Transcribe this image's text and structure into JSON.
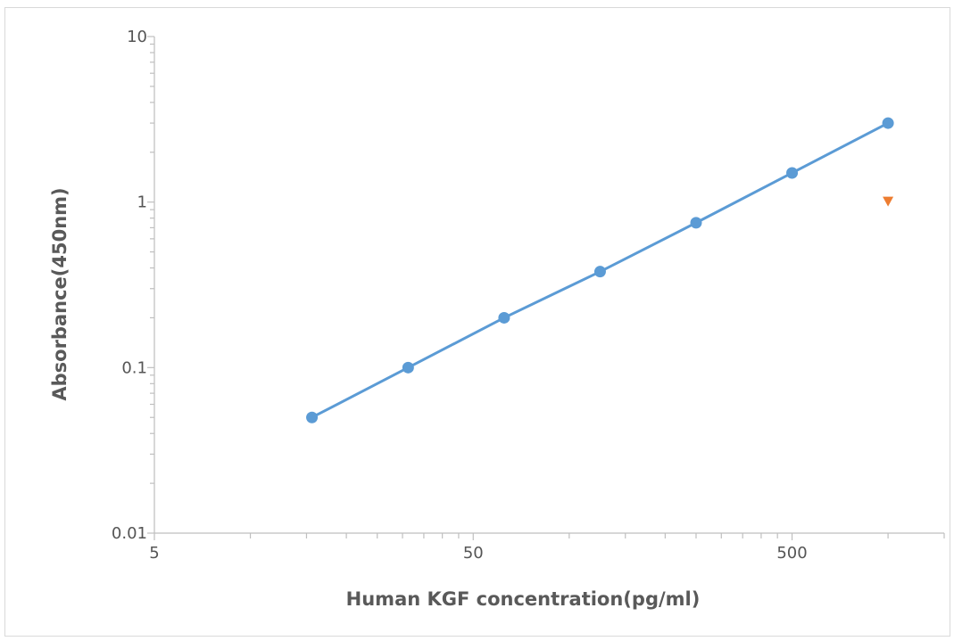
{
  "chart_data": {
    "type": "scatter",
    "title": "",
    "xlabel": "Human KGF concentration(pg/ml)",
    "ylabel": "Absorbance(450nm)",
    "x_scale": "log",
    "y_scale": "log",
    "xlim": [
      5,
      1500
    ],
    "ylim": [
      0.01,
      10
    ],
    "x_tick_labels": [
      "5",
      "50",
      "500"
    ],
    "y_tick_labels": [
      "10",
      "1",
      "0.1",
      "0.01"
    ],
    "grid": false,
    "series": [
      {
        "color": "#5b9bd5",
        "marker": "circle",
        "line": true,
        "x": [
          15.6,
          31.25,
          62.5,
          125,
          250,
          500,
          1000
        ],
        "y": [
          0.05,
          0.1,
          0.2,
          0.38,
          0.75,
          1.5,
          3.0
        ]
      },
      {
        "color": "#ed7d31",
        "marker": "triangle-down",
        "line": false,
        "x": [
          1000
        ],
        "y": [
          1.0
        ]
      }
    ]
  }
}
